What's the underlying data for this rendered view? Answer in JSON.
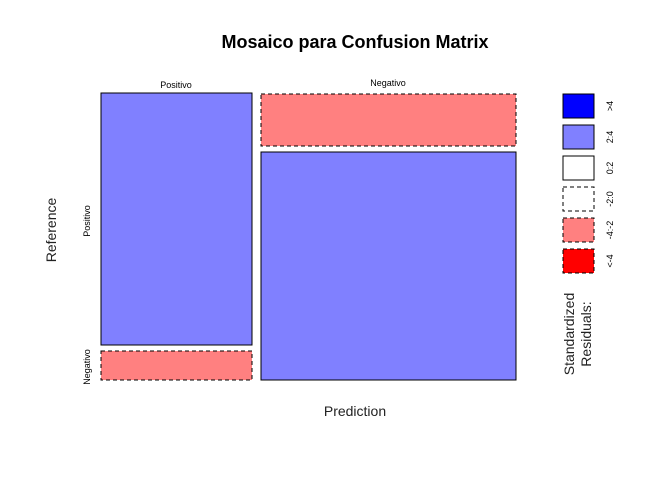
{
  "chart_data": {
    "type": "mosaic",
    "title": "Mosaico para Confusion Matrix",
    "xlabel": "Prediction",
    "ylabel": "Reference",
    "x_categories": [
      "Positivo",
      "Negativo"
    ],
    "y_categories": [
      "Positivo",
      "Negativo"
    ],
    "cells": [
      {
        "prediction": "Positivo",
        "reference": "Positivo",
        "shading": "2:4"
      },
      {
        "prediction": "Positivo",
        "reference": "Negativo",
        "shading": "-4:-2"
      },
      {
        "prediction": "Negativo",
        "reference": "Positivo",
        "shading": "-4:-2"
      },
      {
        "prediction": "Negativo",
        "reference": "Negativo",
        "shading": "2:4"
      }
    ],
    "legend": {
      "title_lines": [
        "Standardized",
        "Residuals:"
      ],
      "items": [
        {
          "label": ">4",
          "color": "#0000ff",
          "dashed": false
        },
        {
          "label": "2:4",
          "color": "#8080ff",
          "dashed": false
        },
        {
          "label": "0:2",
          "color": "#ffffff",
          "dashed": false
        },
        {
          "label": "-2:0",
          "color": "#ffffff",
          "dashed": true
        },
        {
          "label": "-4:-2",
          "color": "#ff8080",
          "dashed": true
        },
        {
          "label": "<-4",
          "color": "#ff0000",
          "dashed": true
        }
      ]
    }
  }
}
